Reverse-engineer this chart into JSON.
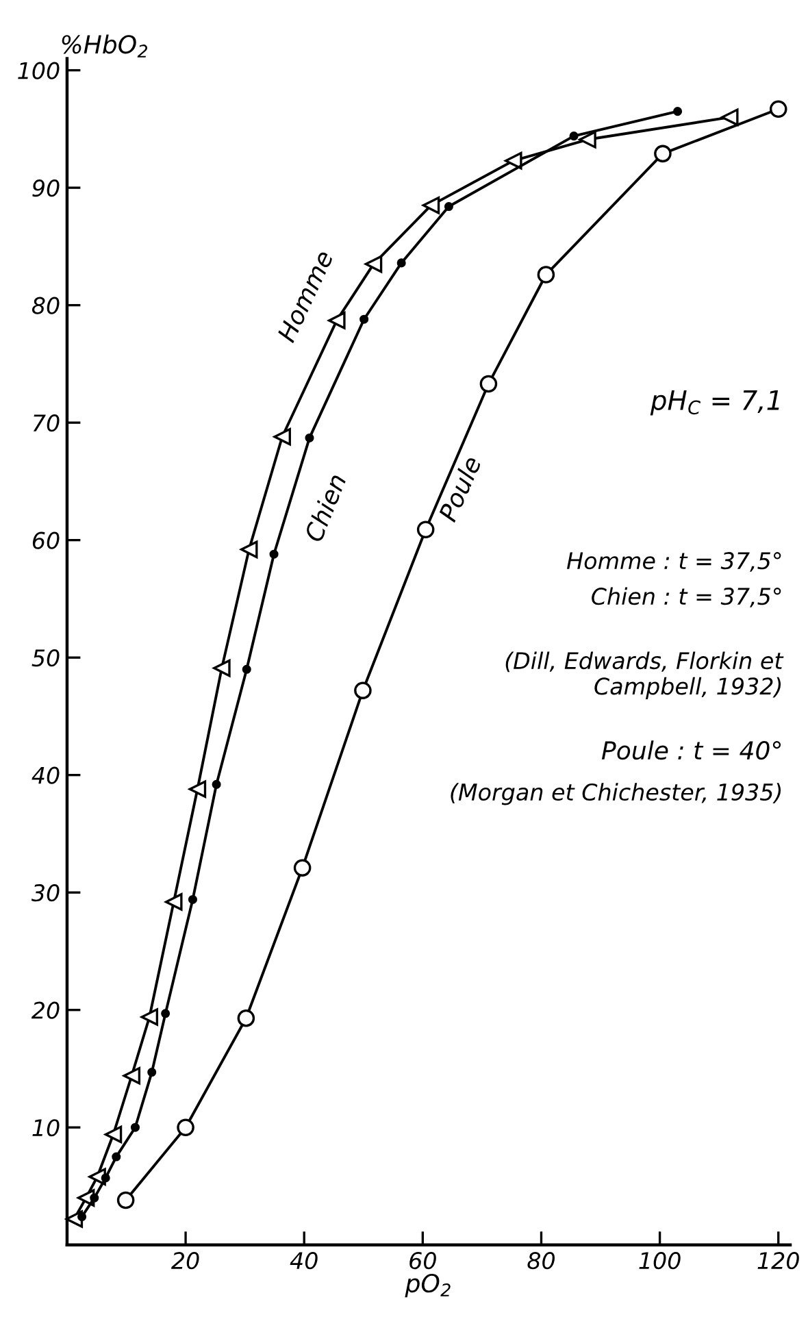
{
  "chart_data": {
    "type": "line",
    "xlabel": "pO$_{2}$",
    "ylabel": "%HbO$_{2}$",
    "xlim": [
      0,
      122
    ],
    "ylim": [
      0,
      101
    ],
    "xticks": [
      {
        "value": 0,
        "label": null
      },
      20,
      40,
      60,
      80,
      100,
      120
    ],
    "yticks": [
      {
        "value": 0,
        "label": null
      },
      10,
      20,
      30,
      40,
      50,
      60,
      70,
      80,
      90,
      100
    ],
    "grid": false,
    "series": [
      {
        "name": "Homme",
        "color": "#000000",
        "marker": "triangle",
        "x": [
          1.2,
          3.2,
          5.1,
          7.8,
          10.9,
          13.9,
          18,
          22,
          26.1,
          30.7,
          36.3,
          45.5,
          51.7,
          61.4,
          75.3,
          87.8,
          111.8
        ],
        "values": [
          2.2,
          4,
          5.8,
          9.4,
          14.4,
          19.4,
          29.2,
          38.8,
          49.1,
          59.2,
          68.8,
          78.7,
          83.5,
          88.5,
          92.3,
          94.1,
          96
        ]
      },
      {
        "name": "Chien",
        "color": "#000000",
        "marker": "dot",
        "x": [
          2.5,
          4.6,
          6.5,
          8.3,
          11.5,
          14.3,
          16.6,
          21.2,
          25.2,
          30.3,
          34.9,
          40.9,
          50.1,
          56.4,
          64.4,
          85.5,
          103
        ],
        "values": [
          2.4,
          4,
          5.7,
          7.5,
          10,
          14.7,
          19.7,
          29.4,
          39.2,
          49,
          58.8,
          68.7,
          78.8,
          83.6,
          88.4,
          94.4,
          96.5
        ]
      },
      {
        "name": "Poule",
        "color": "#000000",
        "marker": "circle",
        "x": [
          9.9,
          20,
          30.2,
          39.7,
          49.9,
          60.5,
          71.1,
          80.8,
          100.5,
          120
        ],
        "values": [
          3.8,
          10,
          19.3,
          32.1,
          47.2,
          60.9,
          73.3,
          82.6,
          92.9,
          96.7
        ]
      }
    ],
    "annotations": [
      "pH$_{C}$ = 7,1",
      "Homme : t = 37,5°",
      "Chien : t = 37,5°",
      "(Dill, Edwards, Florkin et\nCampbell, 1932)",
      "Poule : t = 40°",
      "(Morgan et Chichester, 1935)"
    ]
  }
}
